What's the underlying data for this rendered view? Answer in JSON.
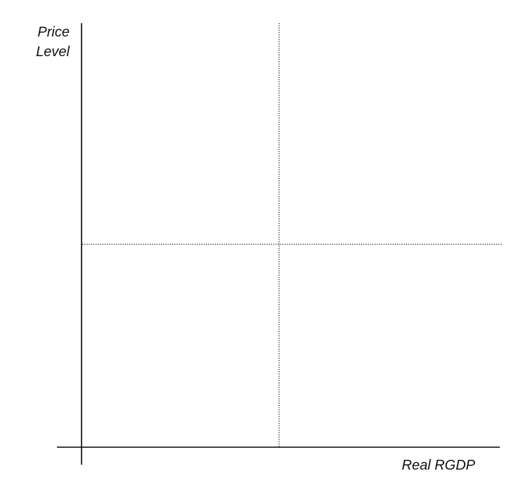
{
  "diagram": {
    "y_axis_label_line1": "Price",
    "y_axis_label_line2": "Level",
    "x_axis_label": "Real RGDP",
    "line_color": "#000000"
  }
}
